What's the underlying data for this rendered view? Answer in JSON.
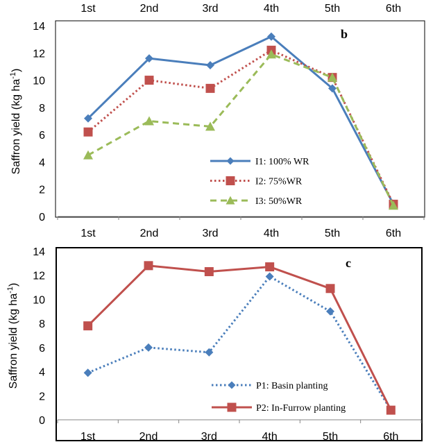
{
  "chart_data": [
    {
      "type": "line",
      "panel_label": "b",
      "categories": [
        "1st",
        "2nd",
        "3rd",
        "4th",
        "5th",
        "6th"
      ],
      "top_categories": [
        "1st",
        "2nd",
        "3rd",
        "4th",
        "5th",
        "6th"
      ],
      "ylabel": "Saffron yield (kg ha-1)",
      "ylim": [
        0,
        14
      ],
      "yticks": [
        "0",
        "2",
        "4",
        "6",
        "8",
        "10",
        "12",
        "14"
      ],
      "grid": false,
      "legend_position": "bottom-center",
      "series": [
        {
          "name": "I1: 100% WR",
          "values": [
            7.2,
            11.6,
            11.1,
            13.2,
            9.4,
            0.9
          ],
          "color": "#4a7ebb",
          "marker": "diamond",
          "dash": "solid"
        },
        {
          "name": "I2: 75%WR",
          "values": [
            6.2,
            10.0,
            9.4,
            12.2,
            10.2,
            0.9
          ],
          "color": "#c0504d",
          "marker": "square",
          "dash": "dotted"
        },
        {
          "name": "I3: 50%WR",
          "values": [
            4.5,
            7.0,
            6.6,
            11.9,
            10.2,
            0.8
          ],
          "color": "#9bbb59",
          "marker": "triangle",
          "dash": "dashed"
        }
      ]
    },
    {
      "type": "line",
      "panel_label": "c",
      "categories": [
        "1st",
        "2nd",
        "3rd",
        "4th",
        "5th",
        "6th"
      ],
      "ylabel": "Saffron yield (kg ha-1)",
      "ylim": [
        0,
        14
      ],
      "yticks": [
        "0",
        "2",
        "4",
        "6",
        "8",
        "10",
        "12",
        "14"
      ],
      "grid": false,
      "legend_position": "bottom-center",
      "series": [
        {
          "name": "P1: Basin planting",
          "values": [
            3.9,
            6.0,
            5.6,
            11.9,
            9.0,
            0.8
          ],
          "color": "#4a7ebb",
          "marker": "diamond",
          "dash": "dotted"
        },
        {
          "name": "P2: In-Furrow planting",
          "values": [
            7.8,
            12.8,
            12.3,
            12.7,
            10.9,
            0.8
          ],
          "color": "#c0504d",
          "marker": "square",
          "dash": "solid"
        }
      ]
    }
  ]
}
